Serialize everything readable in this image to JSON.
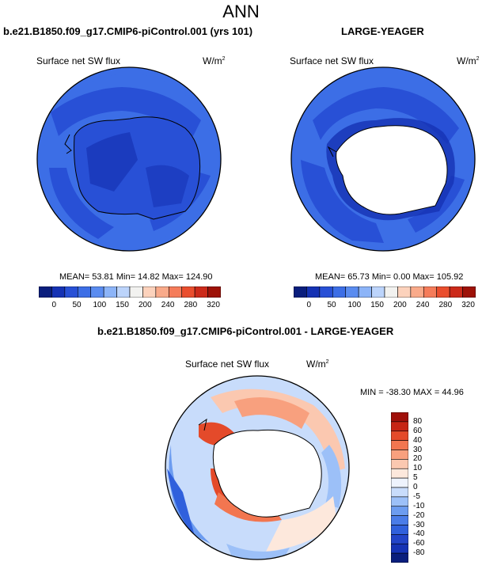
{
  "main_title": "ANN",
  "panels": [
    {
      "title": "b.e21.B1850.f09_g17.CMIP6-piControl.001 (yrs 101)",
      "variable": "Surface net SW flux",
      "units": "W/m",
      "units_sup": "2",
      "stats": "MEAN=  53.81  Min=  14.82  Max= 124.90",
      "colorbar_labels": [
        "0",
        "50",
        "100",
        "150",
        "200",
        "240",
        "280",
        "320"
      ]
    },
    {
      "title": "LARGE-YEAGER",
      "variable": "Surface net SW flux",
      "units": "W/m",
      "units_sup": "2",
      "stats": "MEAN=  65.73  Min=   0.00  Max= 105.92",
      "colorbar_labels": [
        "0",
        "50",
        "100",
        "150",
        "200",
        "240",
        "280",
        "320"
      ]
    },
    {
      "title": "b.e21.B1850.f09_g17.CMIP6-piControl.001 - LARGE-YEAGER",
      "variable": "Surface net SW flux",
      "units": "W/m",
      "units_sup": "2",
      "stats": "MIN = -38.30 MAX =  44.96",
      "colorbar_labels": [
        "80",
        "60",
        "40",
        "30",
        "20",
        "10",
        "5",
        "0",
        "-5",
        "-10",
        "-20",
        "-30",
        "-40",
        "-60",
        "-80"
      ]
    }
  ],
  "colors": {
    "abs_scale": [
      "#0a1e7d",
      "#1532b4",
      "#2850d6",
      "#3c6ee6",
      "#5a8cf0",
      "#8cb4f8",
      "#bcd4fb",
      "#f2f2f0",
      "#fcd2bc",
      "#f9aa8a",
      "#f57c5a",
      "#ea4e2e",
      "#cc2a1a",
      "#9e1208"
    ],
    "diff_scale": [
      "#0a1e7d",
      "#1532b4",
      "#2244c8",
      "#3060dc",
      "#4a7ce8",
      "#6c9cf0",
      "#9cc0f8",
      "#c8dcfb",
      "#eef3fd",
      "#fde8dc",
      "#fbc8b0",
      "#f8a07e",
      "#f27650",
      "#e44a2a",
      "#c62414",
      "#a0100a"
    ]
  }
}
